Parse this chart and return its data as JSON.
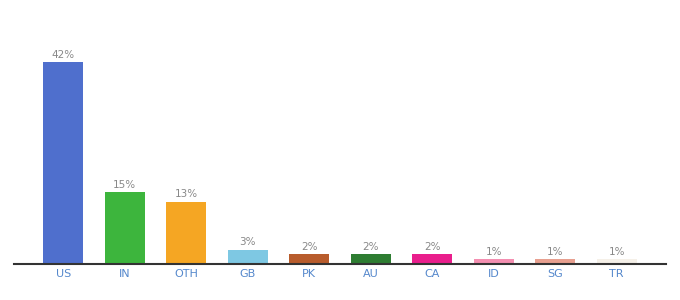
{
  "categories": [
    "US",
    "IN",
    "OTH",
    "GB",
    "PK",
    "AU",
    "CA",
    "ID",
    "SG",
    "TR"
  ],
  "values": [
    42,
    15,
    13,
    3,
    2,
    2,
    2,
    1,
    1,
    1
  ],
  "bar_colors": [
    "#4f6fcd",
    "#3db53d",
    "#f5a623",
    "#7ec8e3",
    "#b85c2c",
    "#2e7d32",
    "#e91e8c",
    "#f48fb1",
    "#e8a090",
    "#f5f0e8"
  ],
  "label_fontsize": 7.5,
  "tick_fontsize": 8,
  "ylim": [
    0,
    50
  ],
  "background_color": "#ffffff",
  "label_color": "#888888",
  "tick_color": "#5588cc"
}
